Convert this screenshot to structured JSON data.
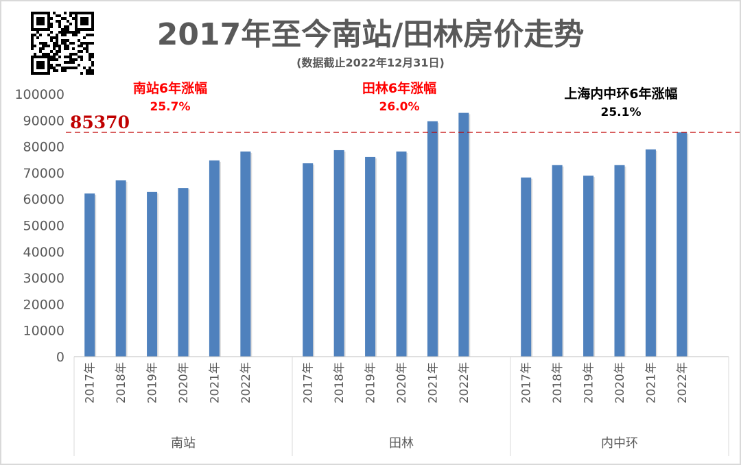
{
  "chart_data": {
    "type": "bar",
    "title": "2017年至今南站/田林房价走势",
    "subtitle": "(数据截止2022年12月31日)",
    "ylim": [
      0,
      100000
    ],
    "yticks": [
      "0",
      "10000",
      "20000",
      "30000",
      "40000",
      "50000",
      "60000",
      "70000",
      "80000",
      "90000",
      "100000"
    ],
    "categories": [
      "2017年",
      "2018年",
      "2019年",
      "2020年",
      "2021年",
      "2022年"
    ],
    "groups": [
      {
        "name": "南站",
        "values": [
          62100,
          67100,
          62700,
          64200,
          74700,
          78100
        ]
      },
      {
        "name": "田林",
        "values": [
          73600,
          78600,
          76000,
          78100,
          89600,
          92800
        ]
      },
      {
        "name": "内中环",
        "values": [
          68200,
          72900,
          68900,
          72900,
          78900,
          85370
        ]
      }
    ],
    "reference_line": {
      "value": 85370,
      "label": "85370",
      "color": "#c00000"
    },
    "annotations": [
      {
        "title": "南站6年涨幅",
        "value": "25.7%",
        "color": "#ff0000"
      },
      {
        "title": "田林6年涨幅",
        "value": "26.0%",
        "color": "#ff0000"
      },
      {
        "title": "上海内中环6年涨幅",
        "value": "25.1%",
        "color": "#000000"
      }
    ],
    "bar_color": "#4f81bd",
    "grid": false
  },
  "logo": {
    "type": "qr-code"
  }
}
